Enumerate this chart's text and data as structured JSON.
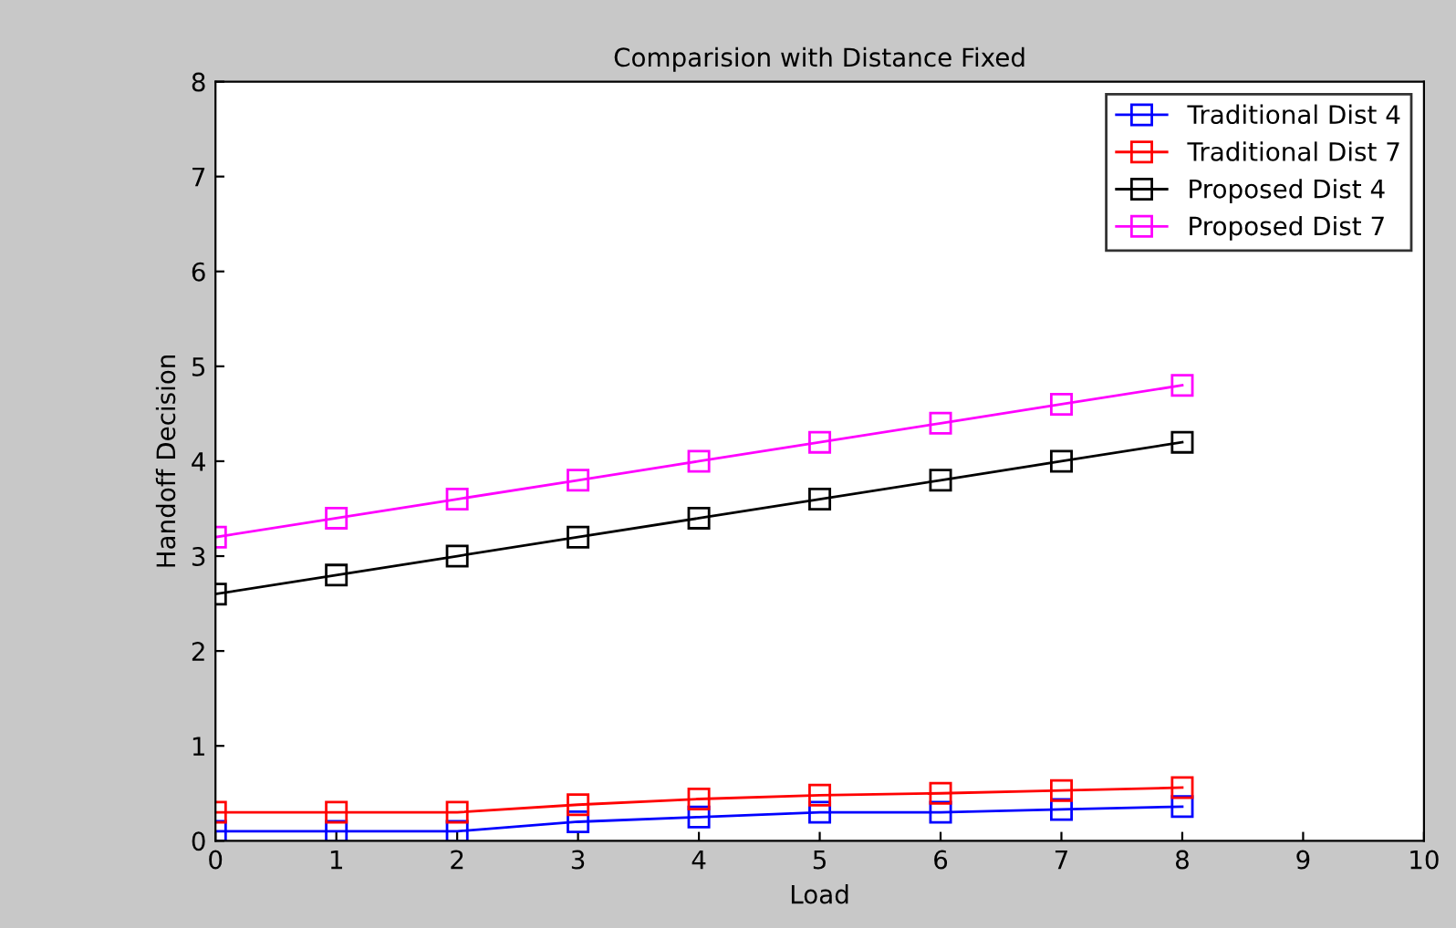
{
  "chart_data": {
    "type": "line",
    "title": "Comparision with Distance Fixed",
    "xlabel": "Load",
    "ylabel": "Handoff Decision",
    "x": [
      0,
      1,
      2,
      3,
      4,
      5,
      6,
      7,
      8
    ],
    "series": [
      {
        "name": "Traditional Dist 4",
        "color": "#0000ff",
        "values": [
          0.1,
          0.1,
          0.1,
          0.2,
          0.25,
          0.3,
          0.3,
          0.33,
          0.36
        ]
      },
      {
        "name": "Traditional Dist 7",
        "color": "#ff0000",
        "values": [
          0.3,
          0.3,
          0.3,
          0.38,
          0.44,
          0.48,
          0.5,
          0.53,
          0.56
        ]
      },
      {
        "name": "Proposed Dist 4",
        "color": "#000000",
        "values": [
          2.6,
          2.8,
          3.0,
          3.2,
          3.4,
          3.6,
          3.8,
          4.0,
          4.2
        ]
      },
      {
        "name": "Proposed Dist 7",
        "color": "#ff00ff",
        "values": [
          3.2,
          3.4,
          3.6,
          3.8,
          4.0,
          4.2,
          4.4,
          4.6,
          4.8
        ]
      }
    ],
    "xlim": [
      0,
      10
    ],
    "ylim": [
      0,
      8
    ],
    "xticks": [
      0,
      1,
      2,
      3,
      4,
      5,
      6,
      7,
      8,
      9,
      10
    ],
    "yticks": [
      0,
      1,
      2,
      3,
      4,
      5,
      6,
      7,
      8
    ],
    "legend": "top right",
    "marker": "square",
    "line_style": "solid",
    "grid": false
  }
}
